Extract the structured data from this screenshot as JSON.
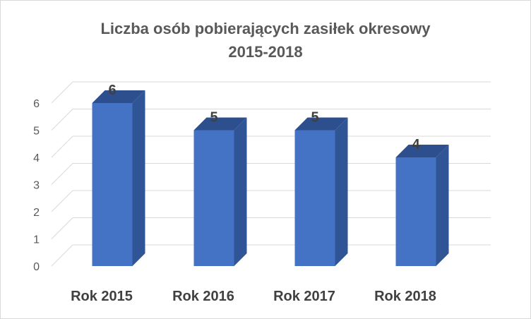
{
  "chart_data": {
    "type": "bar",
    "style": "3d-column",
    "title": "Liczba osób pobierających zasiłek okresowy",
    "subtitle": "2015-2018",
    "categories": [
      "Rok 2015",
      "Rok 2016",
      "Rok 2017",
      "Rok 2018"
    ],
    "values": [
      6,
      5,
      5,
      4
    ],
    "y_ticks": [
      "0",
      "1",
      "2",
      "3",
      "4",
      "5",
      "6"
    ],
    "ylim": [
      0,
      6
    ],
    "grid": true,
    "legend": "none",
    "colors": {
      "bar_front": "#4472c4",
      "bar_side": "#2f5597",
      "bar_top": "#2e4f8e",
      "grid": "#d9d9d9",
      "text": "#595959"
    }
  }
}
